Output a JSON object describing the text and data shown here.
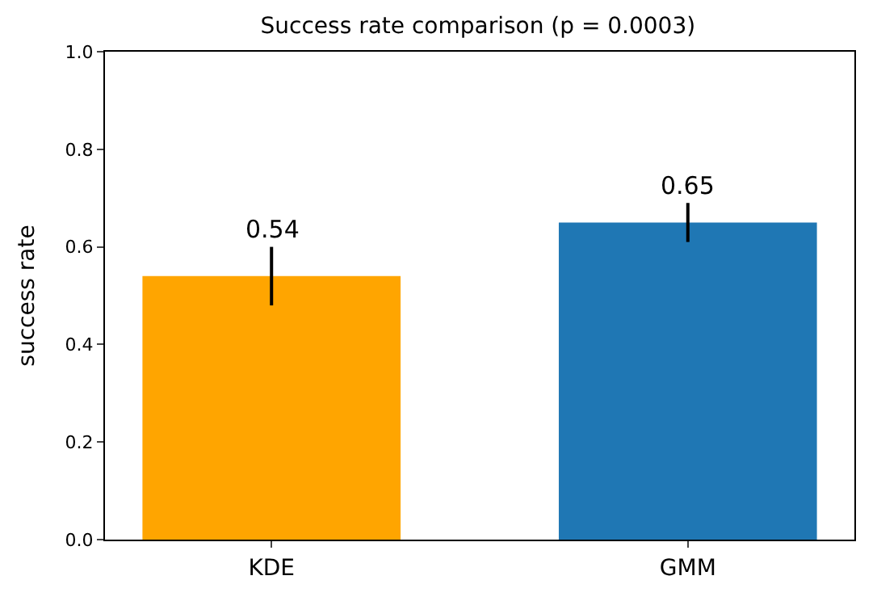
{
  "chart_data": {
    "type": "bar",
    "title": "Success rate comparison (p = 0.0003)",
    "ylabel": "success rate",
    "categories": [
      "KDE",
      "GMM"
    ],
    "values": [
      0.54,
      0.65
    ],
    "colors": [
      "#ffa500",
      "#1f77b4"
    ],
    "errors": [
      0.06,
      0.04
    ],
    "data_labels": true,
    "ylim": [
      0,
      1
    ],
    "yticks": [
      {
        "value": 0,
        "label": "0.0"
      },
      0.2,
      0.4,
      0.6,
      0.8,
      {
        "value": 1,
        "label": "1.0"
      }
    ],
    "legend": false
  }
}
